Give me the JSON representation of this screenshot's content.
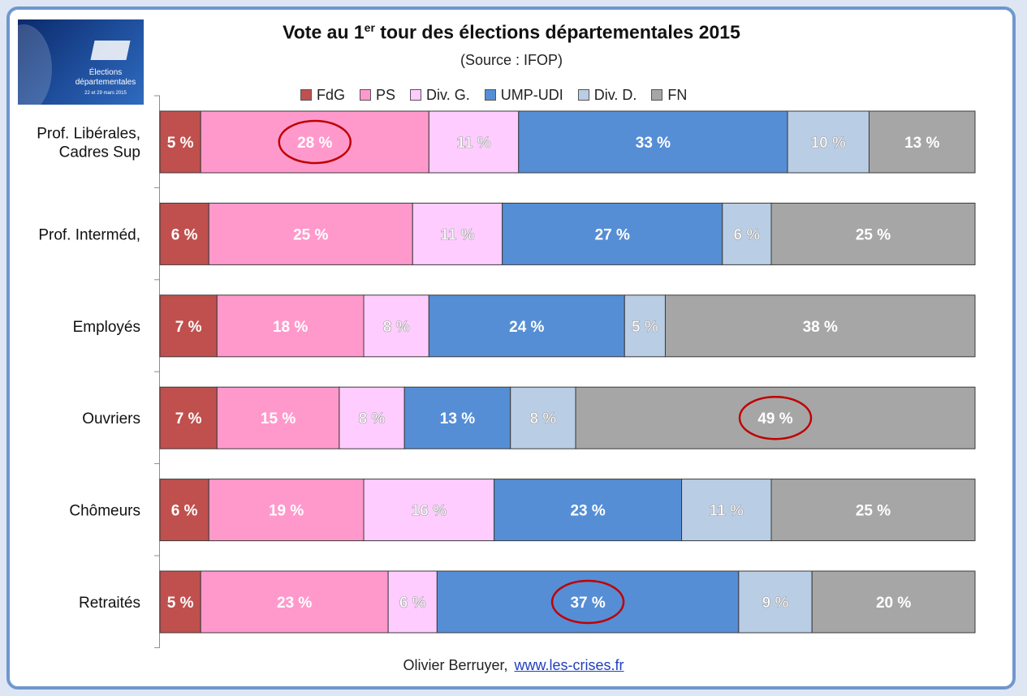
{
  "logo": {
    "line1": "Élections",
    "line2": "départementales",
    "line3": "22 et 29 mars 2015"
  },
  "header": {
    "title_before": "Vote au 1",
    "title_sup": "er",
    "title_after": " tour des élections départementales 2015",
    "subtitle": "(Source : IFOP)"
  },
  "footer": {
    "author": "Olivier Berruyer,",
    "link": "www.les-crises.fr"
  },
  "chart_data": {
    "type": "bar",
    "orientation": "horizontal",
    "stacked": true,
    "percent_stacked": true,
    "legend_position": "top",
    "grid": false,
    "xlim": [
      0,
      100
    ],
    "value_suffix": " %",
    "categories": [
      "Prof. Libérales, Cadres Sup",
      "Prof. Interméd,",
      "Employés",
      "Ouvriers",
      "Chômeurs",
      "Retraités"
    ],
    "category_lines": [
      [
        "Prof. Libérales,",
        "Cadres Sup"
      ],
      [
        "Prof. Interméd,"
      ],
      [
        "Employés"
      ],
      [
        "Ouvriers"
      ],
      [
        "Chômeurs"
      ],
      [
        "Retraités"
      ]
    ],
    "series": [
      {
        "name": "FdG",
        "color": "#c0504d",
        "values": [
          5,
          6,
          7,
          7,
          6,
          5
        ]
      },
      {
        "name": "PS",
        "color": "#ff99cc",
        "values": [
          28,
          25,
          18,
          15,
          19,
          23
        ]
      },
      {
        "name": "Div. G.",
        "color": "#ffccff",
        "values": [
          11,
          11,
          8,
          8,
          16,
          6
        ]
      },
      {
        "name": "UMP-UDI",
        "color": "#558ed5",
        "values": [
          33,
          27,
          24,
          13,
          23,
          37
        ]
      },
      {
        "name": "Div. D.",
        "color": "#b9cde5",
        "values": [
          10,
          6,
          5,
          8,
          11,
          9
        ]
      },
      {
        "name": "FN",
        "color": "#a6a6a6",
        "values": [
          13,
          25,
          38,
          49,
          25,
          20
        ]
      }
    ],
    "highlighted": [
      {
        "category": 0,
        "series": 1
      },
      {
        "category": 3,
        "series": 5
      },
      {
        "category": 5,
        "series": 3
      }
    ]
  }
}
